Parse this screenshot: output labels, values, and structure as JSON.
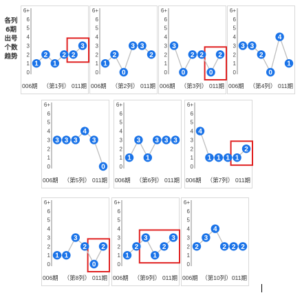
{
  "side_label": "各列6期出号个数趋势",
  "footer": {
    "start": "006期",
    "end": "011期"
  },
  "tick_labels": [
    "0",
    "1",
    "2",
    "3",
    "4",
    "5",
    "6",
    "6+"
  ],
  "colors": {
    "dot": "#1a73e8",
    "line": "#bdbdbd",
    "highlight": "#e02020",
    "axis": "#888888"
  },
  "chart_data": [
    {
      "type": "line",
      "title": "（第1列）",
      "xlabel": "",
      "ylabel": "",
      "ylim": [
        0,
        7
      ],
      "values": [
        1,
        2,
        1,
        2,
        2,
        3
      ],
      "highlight": [
        4,
        5
      ]
    },
    {
      "type": "line",
      "title": "（第2列）",
      "xlabel": "",
      "ylabel": "",
      "ylim": [
        0,
        7
      ],
      "values": [
        1,
        2,
        0,
        3,
        3,
        2
      ],
      "highlight": []
    },
    {
      "type": "line",
      "title": "（第3列）",
      "xlabel": "",
      "ylabel": "",
      "ylim": [
        0,
        7
      ],
      "values": [
        3,
        0,
        2,
        2,
        0,
        2
      ],
      "highlight": [
        4,
        5
      ]
    },
    {
      "type": "line",
      "title": "（第4列）",
      "xlabel": "",
      "ylabel": "",
      "ylim": [
        0,
        7
      ],
      "values": [
        3,
        3,
        2,
        0,
        4,
        1
      ],
      "highlight": []
    },
    {
      "type": "line",
      "title": "（第5列）",
      "xlabel": "",
      "ylabel": "",
      "ylim": [
        0,
        7
      ],
      "values": [
        3,
        3,
        3,
        4,
        3,
        0
      ],
      "highlight": []
    },
    {
      "type": "line",
      "title": "（第6列）",
      "xlabel": "",
      "ylabel": "",
      "ylim": [
        0,
        7
      ],
      "values": [
        1,
        3,
        1,
        3,
        3,
        3
      ],
      "highlight": []
    },
    {
      "type": "line",
      "title": "（第7列）",
      "xlabel": "",
      "ylabel": "",
      "ylim": [
        0,
        7
      ],
      "values": [
        4,
        1,
        1,
        1,
        1,
        2
      ],
      "highlight": [
        4,
        5
      ]
    },
    {
      "type": "line",
      "title": "（第8列）",
      "xlabel": "",
      "ylabel": "",
      "ylim": [
        0,
        7
      ],
      "values": [
        1,
        1,
        3,
        2,
        0,
        2
      ],
      "highlight": [
        4,
        5
      ]
    },
    {
      "type": "line",
      "title": "（第9列）",
      "xlabel": "",
      "ylabel": "",
      "ylim": [
        0,
        7
      ],
      "values": [
        1,
        2,
        3,
        1,
        2,
        3
      ],
      "highlight": [
        2,
        3,
        4,
        5
      ]
    },
    {
      "type": "line",
      "title": "（第10列）",
      "xlabel": "",
      "ylabel": "",
      "ylim": [
        0,
        7
      ],
      "values": [
        2,
        3,
        4,
        2,
        2,
        2
      ],
      "highlight": []
    }
  ]
}
